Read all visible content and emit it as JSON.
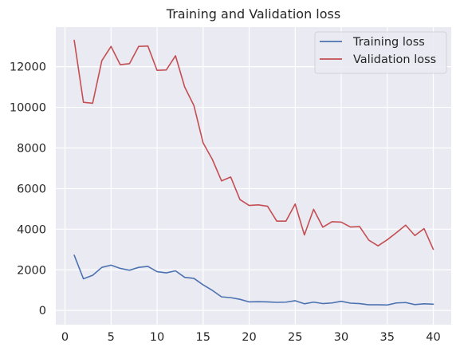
{
  "chart_data": {
    "type": "line",
    "title": "Training and Validation loss",
    "xlabel": "",
    "ylabel": "",
    "xlim": [
      -1,
      41.95
    ],
    "ylim": [
      -700,
      13950
    ],
    "grid": true,
    "legend_position": "top-right",
    "x_ticks": [
      0,
      5,
      10,
      15,
      20,
      25,
      30,
      35,
      40
    ],
    "y_ticks": [
      0,
      2000,
      4000,
      6000,
      8000,
      10000,
      12000
    ],
    "x_tick_labels": [
      "0",
      "5",
      "10",
      "15",
      "20",
      "25",
      "30",
      "35",
      "40"
    ],
    "y_tick_labels": [
      "0",
      "2000",
      "4000",
      "6000",
      "8000",
      "10000",
      "12000"
    ],
    "x": [
      1,
      2,
      3,
      4,
      5,
      6,
      7,
      8,
      9,
      10,
      11,
      12,
      13,
      14,
      15,
      16,
      17,
      18,
      19,
      20,
      21,
      22,
      23,
      24,
      25,
      26,
      27,
      28,
      29,
      30,
      31,
      32,
      33,
      34,
      35,
      36,
      37,
      38,
      39,
      40
    ],
    "series": [
      {
        "name": "Training loss",
        "color": "#4c72b0",
        "values": [
          2720,
          1560,
          1730,
          2120,
          2230,
          2070,
          1980,
          2120,
          2170,
          1910,
          1850,
          1950,
          1630,
          1580,
          1260,
          990,
          670,
          630,
          550,
          420,
          430,
          420,
          400,
          410,
          480,
          330,
          410,
          340,
          370,
          450,
          360,
          340,
          280,
          280,
          270,
          370,
          390,
          290,
          330,
          310
        ]
      },
      {
        "name": "Validation loss",
        "color": "#c44e52",
        "values": [
          13300,
          10250,
          10200,
          12300,
          13000,
          12100,
          12150,
          13000,
          13020,
          11820,
          11840,
          12540,
          11000,
          10090,
          8250,
          7440,
          6380,
          6570,
          5460,
          5170,
          5200,
          5130,
          4400,
          4400,
          5240,
          3720,
          4980,
          4100,
          4370,
          4350,
          4110,
          4130,
          3460,
          3180,
          3480,
          3830,
          4200,
          3690,
          4030,
          3010
        ]
      }
    ]
  }
}
